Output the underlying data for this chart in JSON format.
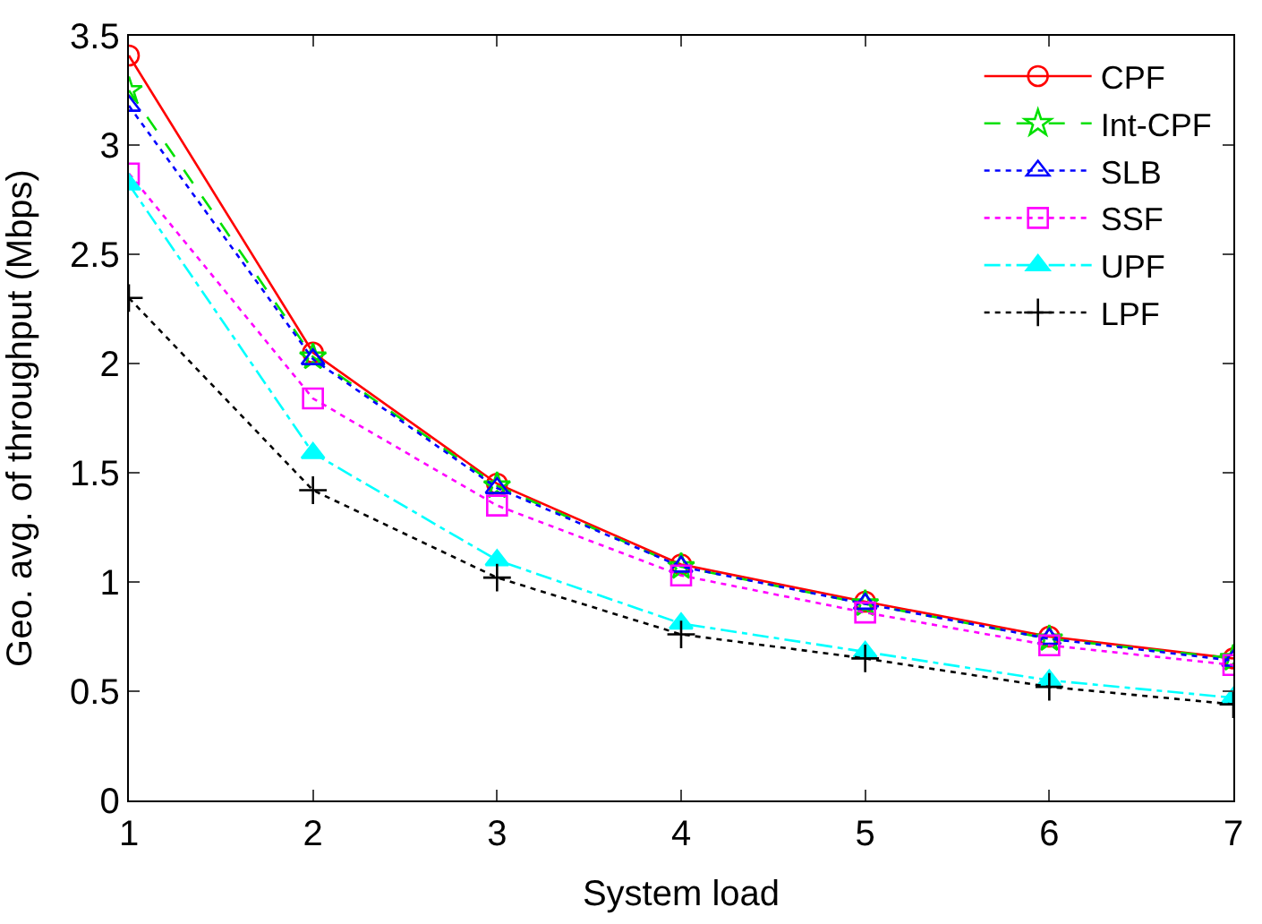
{
  "chart_data": {
    "type": "line",
    "xlabel": "System load",
    "ylabel": "Geo. avg. of throughput (Mbps)",
    "x": [
      1,
      2,
      3,
      4,
      5,
      6,
      7
    ],
    "xlim": [
      1,
      7
    ],
    "xticks": [
      1,
      2,
      3,
      4,
      5,
      6,
      7
    ],
    "ylim": [
      0,
      3.5
    ],
    "yticks": [
      0,
      0.5,
      1,
      1.5,
      2,
      2.5,
      3,
      3.5
    ],
    "grid": false,
    "legend": "top right",
    "series": [
      {
        "name": "CPF",
        "color": "#ff0000",
        "marker": "circle",
        "line_style": "solid",
        "values": [
          3.41,
          2.05,
          1.45,
          1.08,
          0.91,
          0.75,
          0.65
        ]
      },
      {
        "name": "Int-CPF",
        "color": "#00e000",
        "marker": "star",
        "line_style": "dashed",
        "values": [
          3.25,
          2.03,
          1.44,
          1.07,
          0.9,
          0.74,
          0.65
        ]
      },
      {
        "name": "SLB",
        "color": "#0000ff",
        "marker": "triangle",
        "line_style": "dotted",
        "values": [
          3.18,
          2.02,
          1.43,
          1.07,
          0.9,
          0.74,
          0.64
        ]
      },
      {
        "name": "SSF",
        "color": "#ff00ff",
        "marker": "square",
        "line_style": "dotted",
        "values": [
          2.87,
          1.84,
          1.35,
          1.03,
          0.86,
          0.71,
          0.62
        ]
      },
      {
        "name": "UPF",
        "color": "#00ffff",
        "marker": "triangle-filled",
        "line_style": "dashdot",
        "values": [
          2.82,
          1.59,
          1.1,
          0.81,
          0.68,
          0.55,
          0.47
        ]
      },
      {
        "name": "LPF",
        "color": "#000000",
        "marker": "cross",
        "line_style": "dotted",
        "values": [
          2.3,
          1.42,
          1.02,
          0.76,
          0.65,
          0.52,
          0.44
        ]
      }
    ]
  }
}
